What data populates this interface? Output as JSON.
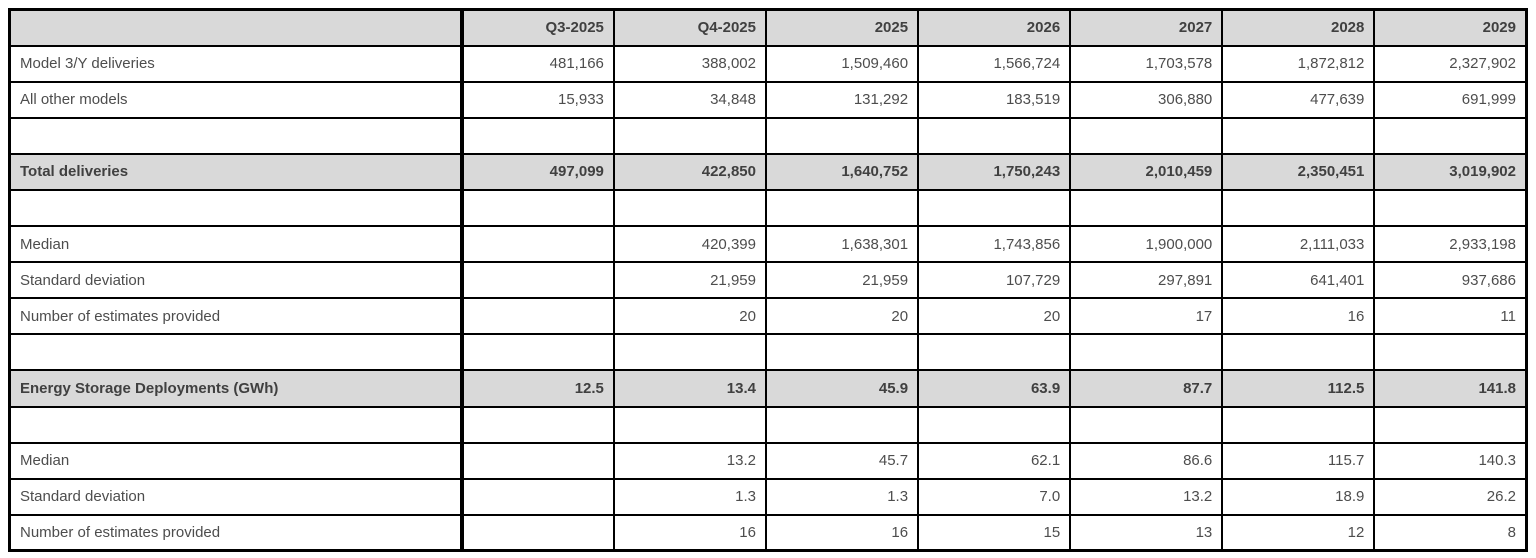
{
  "table": {
    "columns": [
      "",
      "Q3-2025",
      "Q4-2025",
      "2025",
      "2026",
      "2027",
      "2028",
      "2029"
    ],
    "rows": [
      {
        "label": "Model 3/Y deliveries",
        "values": [
          "481,166",
          "388,002",
          "1,509,460",
          "1,566,724",
          "1,703,578",
          "1,872,812",
          "2,327,902"
        ],
        "style": "normal"
      },
      {
        "label": "All other models",
        "values": [
          "15,933",
          "34,848",
          "131,292",
          "183,519",
          "306,880",
          "477,639",
          "691,999"
        ],
        "style": "normal"
      },
      {
        "label": "",
        "values": [
          "",
          "",
          "",
          "",
          "",
          "",
          ""
        ],
        "style": "spacer"
      },
      {
        "label": "Total deliveries",
        "values": [
          "497,099",
          "422,850",
          "1,640,752",
          "1,750,243",
          "2,010,459",
          "2,350,451",
          "3,019,902"
        ],
        "style": "highlight"
      },
      {
        "label": "",
        "values": [
          "",
          "",
          "",
          "",
          "",
          "",
          ""
        ],
        "style": "spacer"
      },
      {
        "label": "Median",
        "values": [
          "",
          "420,399",
          "1,638,301",
          "1,743,856",
          "1,900,000",
          "2,111,033",
          "2,933,198"
        ],
        "style": "normal"
      },
      {
        "label": "Standard deviation",
        "values": [
          "",
          "21,959",
          "21,959",
          "107,729",
          "297,891",
          "641,401",
          "937,686"
        ],
        "style": "normal"
      },
      {
        "label": "Number of estimates provided",
        "values": [
          "",
          "20",
          "20",
          "20",
          "17",
          "16",
          "11"
        ],
        "style": "normal"
      },
      {
        "label": "",
        "values": [
          "",
          "",
          "",
          "",
          "",
          "",
          ""
        ],
        "style": "spacer"
      },
      {
        "label": "Energy Storage Deployments (GWh)",
        "values": [
          "12.5",
          "13.4",
          "45.9",
          "63.9",
          "87.7",
          "112.5",
          "141.8"
        ],
        "style": "highlight"
      },
      {
        "label": "",
        "values": [
          "",
          "",
          "",
          "",
          "",
          "",
          ""
        ],
        "style": "spacer"
      },
      {
        "label": "Median",
        "values": [
          "",
          "13.2",
          "45.7",
          "62.1",
          "86.6",
          "115.7",
          "140.3"
        ],
        "style": "normal"
      },
      {
        "label": "Standard deviation",
        "values": [
          "",
          "1.3",
          "1.3",
          "7.0",
          "13.2",
          "18.9",
          "26.2"
        ],
        "style": "normal"
      },
      {
        "label": "Number of estimates provided",
        "values": [
          "",
          "16",
          "16",
          "15",
          "13",
          "12",
          "8"
        ],
        "style": "normal"
      }
    ],
    "colors": {
      "header_bg": "#d9d9d9",
      "highlight_bg": "#d9d9d9",
      "text": "#4d4d4d",
      "border": "#000000",
      "page_bg": "#ffffff"
    }
  }
}
